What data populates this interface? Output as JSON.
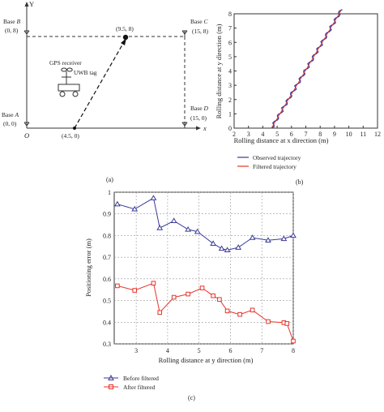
{
  "panel_a": {
    "axis_y": "Y",
    "axis_x": "x",
    "origin": "O",
    "base_b": {
      "name_prefix": "Base ",
      "name_letter": "B",
      "coord": "(0, 8)"
    },
    "base_c": {
      "name_prefix": "Base ",
      "name_letter": "C",
      "coord": "(15, 8)"
    },
    "base_a": {
      "name_prefix": "Base ",
      "name_letter": "A",
      "coord": "(0, 0)"
    },
    "base_d": {
      "name_prefix": "Base ",
      "name_letter": "D",
      "coord": "(15, 0)"
    },
    "point_end": "(9.5, 8)",
    "point_start": "(4.5, 0)",
    "gps_label": "GPS receiver",
    "uwb_label": "UWB tag",
    "caption": "(a)"
  },
  "chart_data": [
    {
      "id": "b",
      "type": "line",
      "xlabel": "Rolling distance at x direction (m)",
      "ylabel": "Rolling distance at y direction (m)",
      "xlim": [
        2,
        12
      ],
      "ylim": [
        0,
        8
      ],
      "xticks": [
        "2",
        "3",
        "4",
        "5",
        "6",
        "7",
        "8",
        "9",
        "10",
        "11",
        "12"
      ],
      "yticks": [
        "0",
        "1",
        "2",
        "3",
        "4",
        "5",
        "6",
        "7",
        "8"
      ],
      "legend_position": "bottom",
      "series": [
        {
          "name": "Observed trajectory",
          "color": "#3a3a9a",
          "x": [
            4.6,
            9.5
          ],
          "y": [
            0,
            8.3
          ]
        },
        {
          "name": "Filtered trajectory",
          "color": "#e8332a",
          "x": [
            4.6,
            9.5
          ],
          "y": [
            0,
            8.3
          ]
        }
      ],
      "caption": "(b)"
    },
    {
      "id": "c",
      "type": "line",
      "xlabel": "Rolling distance at y direction (m)",
      "ylabel": "Positioning error (m)",
      "xlim": [
        2.3,
        8
      ],
      "ylim": [
        0.3,
        1.0
      ],
      "xticks": [
        3,
        4,
        5,
        6,
        7,
        8
      ],
      "yticks": [
        0.3,
        0.4,
        0.5,
        0.6,
        0.7,
        0.8,
        0.9,
        1
      ],
      "legend_position": "bottom-left",
      "series": [
        {
          "name": "Before filtered",
          "color": "#3a3a9a",
          "marker": "triangle",
          "x": [
            2.4,
            2.95,
            3.55,
            3.75,
            4.2,
            4.65,
            4.95,
            5.45,
            5.72,
            5.9,
            6.25,
            6.7,
            7.2,
            7.7,
            8.0
          ],
          "y": [
            0.945,
            0.922,
            0.973,
            0.835,
            0.868,
            0.828,
            0.818,
            0.763,
            0.74,
            0.733,
            0.745,
            0.79,
            0.778,
            0.785,
            0.8
          ]
        },
        {
          "name": "After filtered",
          "color": "#e8332a",
          "marker": "square",
          "x": [
            2.4,
            2.95,
            3.55,
            3.75,
            4.2,
            4.65,
            5.1,
            5.45,
            5.65,
            5.9,
            6.3,
            6.7,
            7.2,
            7.7,
            7.8,
            8.0
          ],
          "y": [
            0.568,
            0.547,
            0.58,
            0.445,
            0.515,
            0.53,
            0.558,
            0.522,
            0.505,
            0.452,
            0.436,
            0.456,
            0.403,
            0.398,
            0.394,
            0.313
          ]
        }
      ],
      "caption": "(c)"
    }
  ]
}
